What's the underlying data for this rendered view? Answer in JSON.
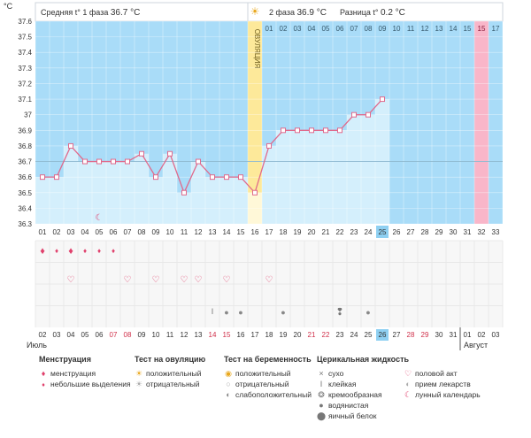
{
  "header": {
    "phase1_label": "Средняя t° 1 фаза",
    "phase1_value": "36.7 °C",
    "phase2_label": "2 фаза",
    "phase2_value": "36.9 °C",
    "diff_label": "Разница t°",
    "diff_value": "0.2 °C",
    "ovulation_label": "ОВУЛЯЦИЯ"
  },
  "chart_data": {
    "type": "line",
    "ylabel": "°C",
    "ylim": [
      36.3,
      37.6
    ],
    "yticks": [
      "37.6",
      "37.5",
      "37.4",
      "37.3",
      "37.2",
      "37.1",
      "37",
      "36.9",
      "36.8",
      "36.7",
      "36.6",
      "36.5",
      "36.4",
      "36.3"
    ],
    "cover_line": 36.7,
    "cycle_days": [
      "01",
      "02",
      "03",
      "04",
      "05",
      "06",
      "07",
      "08",
      "09",
      "10",
      "11",
      "12",
      "13",
      "14",
      "15",
      "16",
      "17",
      "18",
      "19",
      "20",
      "21",
      "22",
      "23",
      "24",
      "25",
      "26",
      "27",
      "28",
      "29",
      "30",
      "31",
      "32",
      "33"
    ],
    "temperatures": [
      36.6,
      36.6,
      36.8,
      36.7,
      36.7,
      36.7,
      36.7,
      36.75,
      36.6,
      36.75,
      36.5,
      36.7,
      36.6,
      36.6,
      36.6,
      36.5,
      36.8,
      36.9,
      36.9,
      36.9,
      36.9,
      36.9,
      37.0,
      37.0,
      37.1
    ],
    "ovulation_day": 16,
    "current_day": 25,
    "top_labels": [
      "01",
      "02",
      "03",
      "04",
      "05",
      "06",
      "07",
      "08",
      "09",
      "10",
      "11",
      "12",
      "13",
      "14",
      "15",
      "16",
      "17"
    ],
    "highlight_top_index": 15,
    "highlight_top_label": "15",
    "dates": [
      "02",
      "03",
      "04",
      "05",
      "06",
      "07",
      "08",
      "09",
      "10",
      "11",
      "12",
      "13",
      "14",
      "15",
      "16",
      "17",
      "18",
      "19",
      "20",
      "21",
      "22",
      "23",
      "24",
      "25",
      "26",
      "27",
      "28",
      "29",
      "30",
      "31",
      "01",
      "02",
      "03"
    ],
    "weekend_date_indices": [
      5,
      6,
      12,
      13,
      19,
      20,
      26,
      27
    ],
    "month_start": "Июль",
    "month_next": "Август",
    "month_next_index": 30
  },
  "markers": {
    "menstruation": [
      1,
      3
    ],
    "spotting": [
      2,
      4,
      5,
      6
    ],
    "sex": [
      3,
      7,
      9,
      11,
      12,
      14,
      17
    ],
    "fluid_dry": [
      13
    ],
    "fluid_watery": [
      14,
      15,
      18,
      24
    ],
    "fluid_creamy": [
      22
    ],
    "moon": [
      5
    ]
  },
  "legend": {
    "menstruation": {
      "title": "Менструация",
      "items": [
        "менструация",
        "небольшие выделения"
      ]
    },
    "ovulation_test": {
      "title": "Тест на овуляцию",
      "items": [
        "положительный",
        "отрицательный"
      ]
    },
    "pregnancy_test": {
      "title": "Тест на беременность",
      "items": [
        "положительный",
        "отрицательный",
        "слабоположительный"
      ]
    },
    "cervical_fluid": {
      "title": "Церикальная жидкость",
      "items": [
        "сухо",
        "клейкая",
        "кремообразная",
        "водянистая",
        "яичный белок"
      ]
    },
    "other": {
      "items": [
        "половой акт",
        "прием лекарств",
        "лунный календарь"
      ]
    }
  },
  "colors": {
    "sky": "#a9dcf8",
    "bar": "#d4effc",
    "line": "#e06a8c",
    "ovulation": "#fde99a",
    "highlight": "#f9b6c9",
    "current": "#8fd0f2"
  }
}
